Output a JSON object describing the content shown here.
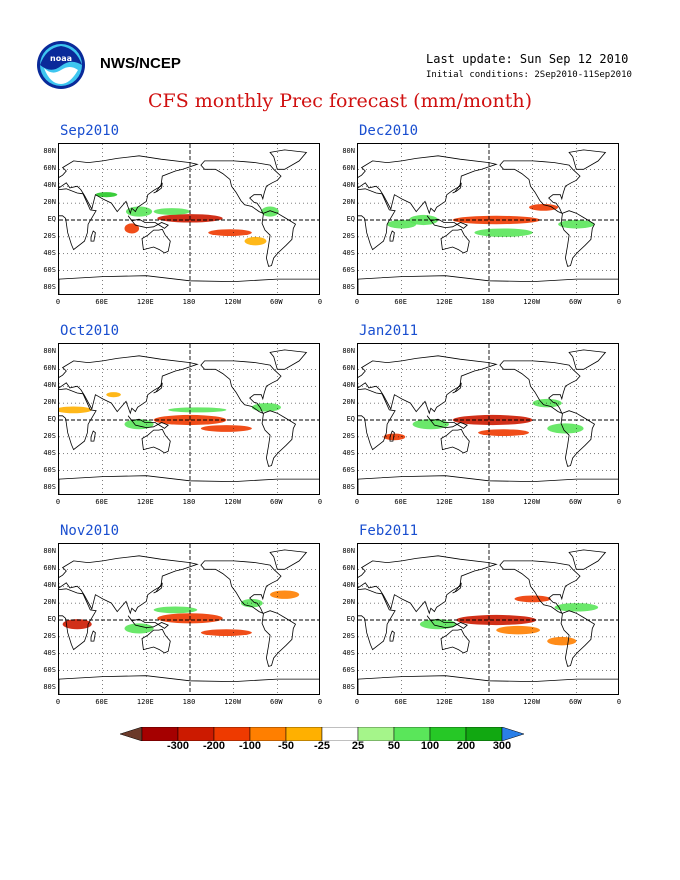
{
  "header": {
    "org": "NWS/NCEP",
    "last_update": "Last update: Sun Sep 12 2010",
    "initial_conditions": "Initial conditions: 2Sep2010-11Sep2010",
    "title": "CFS monthly Prec forecast (mm/month)"
  },
  "panels": [
    {
      "label": "Sep2010",
      "col": 0,
      "row": 0
    },
    {
      "label": "Oct2010",
      "col": 0,
      "row": 1
    },
    {
      "label": "Nov2010",
      "col": 0,
      "row": 2
    },
    {
      "label": "Dec2010",
      "col": 1,
      "row": 0
    },
    {
      "label": "Jan2011",
      "col": 1,
      "row": 1
    },
    {
      "label": "Feb2011",
      "col": 1,
      "row": 2
    }
  ],
  "axes": {
    "lat_labels": [
      "80N",
      "60N",
      "40N",
      "20N",
      "EQ",
      "20S",
      "40S",
      "60S",
      "80S"
    ],
    "lon_labels": [
      "0",
      "60E",
      "120E",
      "180",
      "120W",
      "60W",
      "0"
    ]
  },
  "colorbar": {
    "labels": [
      "-300",
      "-200",
      "-100",
      "-50",
      "-25",
      "25",
      "50",
      "100",
      "200",
      "300"
    ],
    "colors": [
      "#6b3a2a",
      "#a50000",
      "#cc1a00",
      "#ee3a00",
      "#ff7f00",
      "#ffb000",
      "#ffffff",
      "#a5f58a",
      "#5ae65a",
      "#26c826",
      "#11a811",
      "#2a7fe8"
    ]
  },
  "colors": {
    "title": "#d01010",
    "panel_title": "#1a4fd0",
    "dry": "#ff7f00",
    "wet": "#26c826"
  }
}
